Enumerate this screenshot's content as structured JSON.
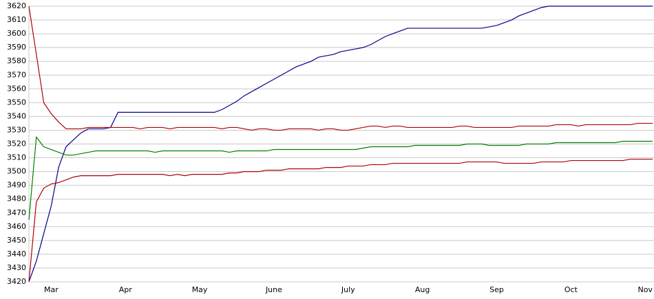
{
  "chart_data": {
    "type": "line",
    "categories": [
      null,
      null,
      null,
      "Mar",
      null,
      null,
      null,
      null,
      null,
      null,
      null,
      null,
      null,
      "Apr",
      null,
      null,
      null,
      null,
      null,
      null,
      null,
      null,
      null,
      "May",
      null,
      null,
      null,
      null,
      null,
      null,
      null,
      null,
      null,
      "June",
      null,
      null,
      null,
      null,
      null,
      null,
      null,
      null,
      null,
      "July",
      null,
      null,
      null,
      null,
      null,
      null,
      null,
      null,
      null,
      "Aug",
      null,
      null,
      null,
      null,
      null,
      null,
      null,
      null,
      null,
      "Sep",
      null,
      null,
      null,
      null,
      null,
      null,
      null,
      null,
      null,
      "Oct",
      null,
      null,
      null,
      null,
      null,
      null,
      null,
      null,
      null,
      "Nov",
      null
    ],
    "series": [
      {
        "color": "#00008b",
        "values": [
          3420,
          3435,
          3455,
          3475,
          3503,
          3518,
          3523,
          3528,
          3531,
          3531,
          3531,
          3532,
          3543,
          3543,
          3543,
          3543,
          3543,
          3543,
          3543,
          3543,
          3543,
          3543,
          3543,
          3543,
          3543,
          3543,
          3545,
          3548,
          3551,
          3555,
          3558,
          3561,
          3564,
          3567,
          3570,
          3573,
          3576,
          3578,
          3580,
          3583,
          3584,
          3585,
          3587,
          3588,
          3589,
          3590,
          3592,
          3595,
          3598,
          3600,
          3602,
          3604,
          3604,
          3604,
          3604,
          3604,
          3604,
          3604,
          3604,
          3604,
          3604,
          3604,
          3605,
          3606,
          3608,
          3610,
          3613,
          3615,
          3617,
          3619,
          3620,
          3620,
          3620,
          3620,
          3620,
          3620,
          3620,
          3620,
          3620,
          3620,
          3620,
          3620,
          3620,
          3620,
          3620
        ]
      },
      {
        "color": "#b00000",
        "values": [
          3620,
          3585,
          3550,
          3542,
          3536,
          3531,
          3531,
          3531,
          3532,
          3532,
          3532,
          3532,
          3532,
          3532,
          3532,
          3531,
          3532,
          3532,
          3532,
          3531,
          3532,
          3532,
          3532,
          3532,
          3532,
          3532,
          3531,
          3532,
          3532,
          3531,
          3530,
          3531,
          3531,
          3530,
          3530,
          3531,
          3531,
          3531,
          3531,
          3530,
          3531,
          3531,
          3530,
          3530,
          3531,
          3532,
          3533,
          3533,
          3532,
          3533,
          3533,
          3532,
          3532,
          3532,
          3532,
          3532,
          3532,
          3532,
          3533,
          3533,
          3532,
          3532,
          3532,
          3532,
          3532,
          3532,
          3533,
          3533,
          3533,
          3533,
          3533,
          3534,
          3534,
          3534,
          3533,
          3534,
          3534,
          3534,
          3534,
          3534,
          3534,
          3534,
          3535,
          3535,
          3535
        ]
      },
      {
        "color": "#008000",
        "values": [
          3465,
          3525,
          3518,
          3516,
          3514,
          3512,
          3512,
          3513,
          3514,
          3515,
          3515,
          3515,
          3515,
          3515,
          3515,
          3515,
          3515,
          3514,
          3515,
          3515,
          3515,
          3515,
          3515,
          3515,
          3515,
          3515,
          3515,
          3514,
          3515,
          3515,
          3515,
          3515,
          3515,
          3516,
          3516,
          3516,
          3516,
          3516,
          3516,
          3516,
          3516,
          3516,
          3516,
          3516,
          3516,
          3517,
          3518,
          3518,
          3518,
          3518,
          3518,
          3518,
          3519,
          3519,
          3519,
          3519,
          3519,
          3519,
          3519,
          3520,
          3520,
          3520,
          3519,
          3519,
          3519,
          3519,
          3519,
          3520,
          3520,
          3520,
          3520,
          3521,
          3521,
          3521,
          3521,
          3521,
          3521,
          3521,
          3521,
          3521,
          3522,
          3522,
          3522,
          3522,
          3522
        ]
      },
      {
        "color": "#b00000",
        "values": [
          3420,
          3478,
          3488,
          3491,
          3492,
          3494,
          3496,
          3497,
          3497,
          3497,
          3497,
          3497,
          3498,
          3498,
          3498,
          3498,
          3498,
          3498,
          3498,
          3497,
          3498,
          3497,
          3498,
          3498,
          3498,
          3498,
          3498,
          3499,
          3499,
          3500,
          3500,
          3500,
          3501,
          3501,
          3501,
          3502,
          3502,
          3502,
          3502,
          3502,
          3503,
          3503,
          3503,
          3504,
          3504,
          3504,
          3505,
          3505,
          3505,
          3506,
          3506,
          3506,
          3506,
          3506,
          3506,
          3506,
          3506,
          3506,
          3506,
          3507,
          3507,
          3507,
          3507,
          3507,
          3506,
          3506,
          3506,
          3506,
          3506,
          3507,
          3507,
          3507,
          3507,
          3508,
          3508,
          3508,
          3508,
          3508,
          3508,
          3508,
          3508,
          3509,
          3509,
          3509,
          3509
        ]
      }
    ],
    "ylim": [
      3420,
      3620
    ],
    "yticks": [
      3420,
      3430,
      3440,
      3450,
      3460,
      3470,
      3480,
      3490,
      3500,
      3510,
      3520,
      3530,
      3540,
      3550,
      3560,
      3570,
      3580,
      3590,
      3600,
      3610,
      3620
    ],
    "grid": true
  }
}
